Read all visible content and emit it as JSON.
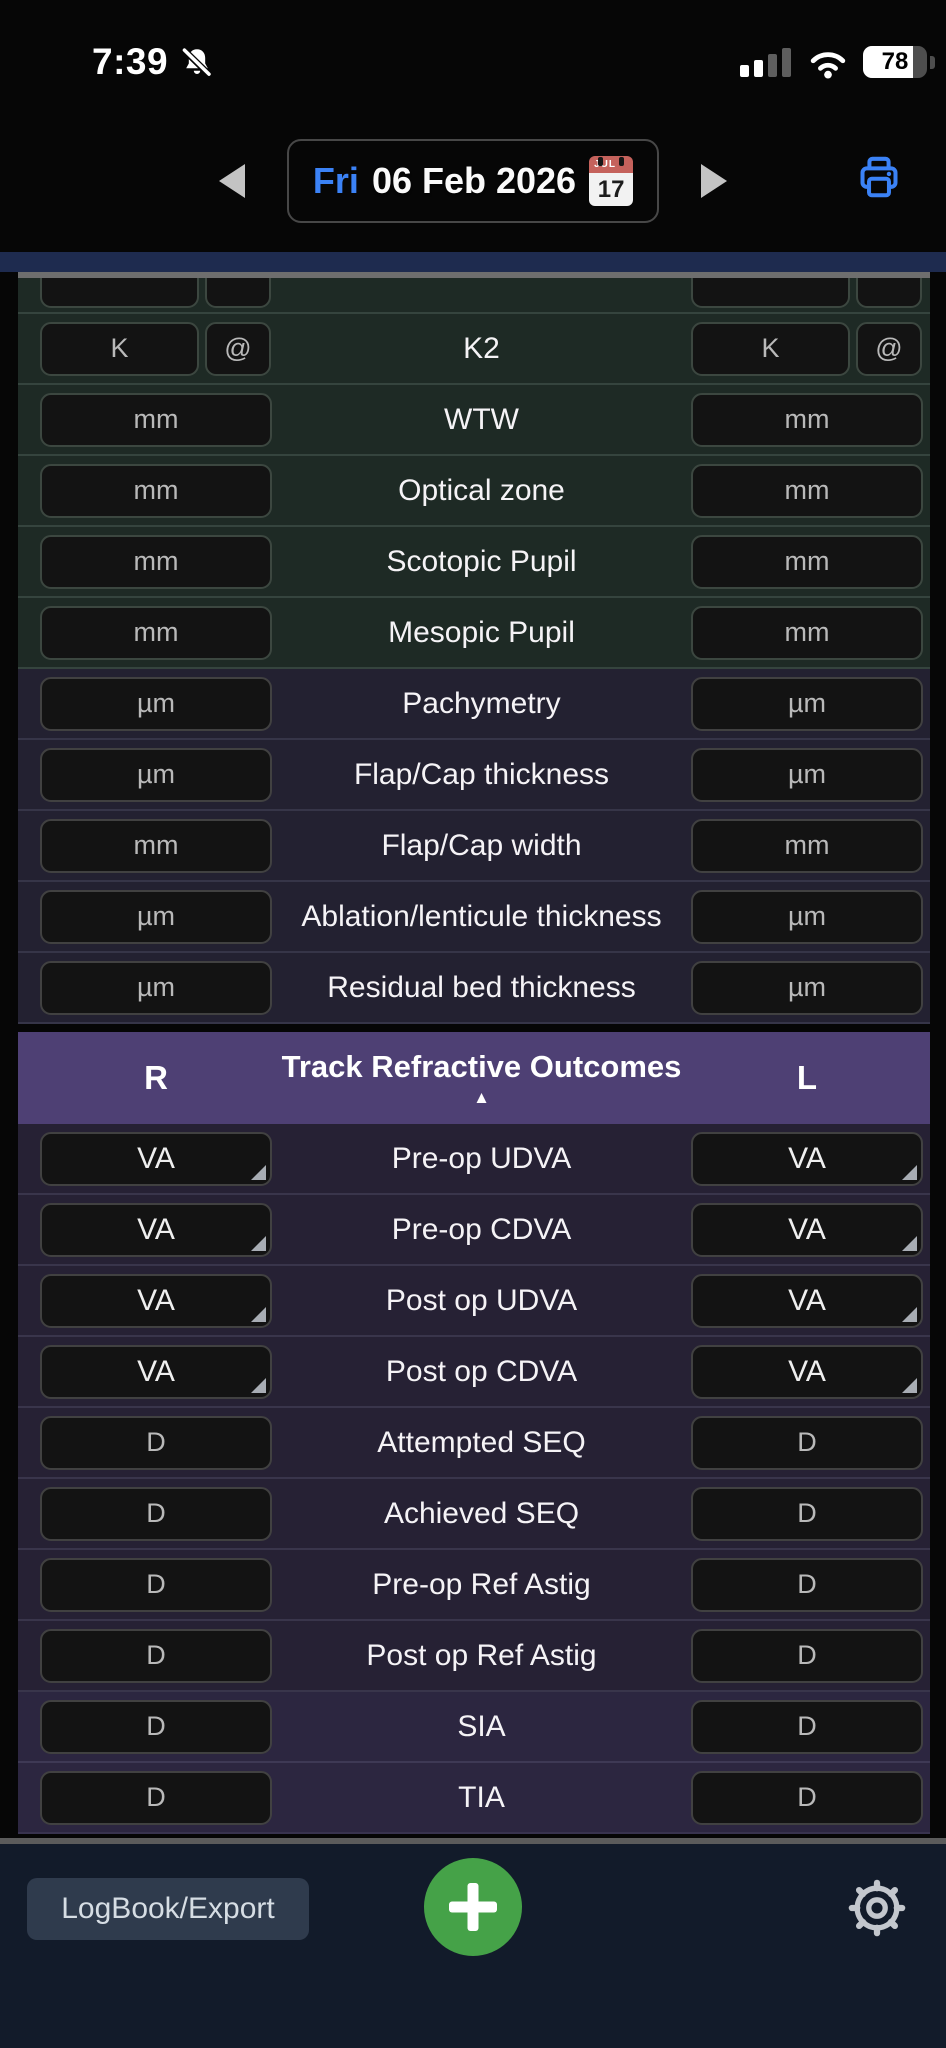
{
  "status_bar": {
    "time": "7:39",
    "battery_percent": "78",
    "icons": [
      "bell-slash-icon",
      "cellular-signal-icon",
      "wifi-icon",
      "battery-icon"
    ]
  },
  "date_nav": {
    "weekday": "Fri",
    "date": "06 Feb 2026",
    "calendar_month": "JUL",
    "calendar_day": "17"
  },
  "biometry": {
    "rows": [
      {
        "label": "",
        "units": [
          "",
          ""
        ],
        "partial": true,
        "section": "green"
      },
      {
        "label": "K2",
        "units": [
          "K",
          "@"
        ],
        "section": "green"
      },
      {
        "label": "WTW",
        "units": [
          "mm"
        ],
        "section": "green"
      },
      {
        "label": "Optical zone",
        "units": [
          "mm"
        ],
        "section": "green"
      },
      {
        "label": "Scotopic Pupil",
        "units": [
          "mm"
        ],
        "section": "green"
      },
      {
        "label": "Mesopic Pupil",
        "units": [
          "mm"
        ],
        "section": "green"
      },
      {
        "label": "Pachymetry",
        "units": [
          "µm"
        ],
        "section": "navy"
      },
      {
        "label": "Flap/Cap thickness",
        "units": [
          "µm"
        ],
        "section": "navy"
      },
      {
        "label": "Flap/Cap width",
        "units": [
          "mm"
        ],
        "section": "navy"
      },
      {
        "label": "Ablation/lenticule thickness",
        "units": [
          "µm"
        ],
        "section": "navy"
      },
      {
        "label": "Residual bed thickness",
        "units": [
          "µm"
        ],
        "section": "navy"
      }
    ]
  },
  "outcomes": {
    "header": {
      "left": "R",
      "title": "Track Refractive Outcomes",
      "sort_icon": "▲",
      "right": "L"
    },
    "rows": [
      {
        "label": "Pre-op UDVA",
        "units": [
          "VA"
        ],
        "picker": true
      },
      {
        "label": "Pre-op CDVA",
        "units": [
          "VA"
        ],
        "picker": true
      },
      {
        "label": "Post op UDVA",
        "units": [
          "VA"
        ],
        "picker": true
      },
      {
        "label": "Post op CDVA",
        "units": [
          "VA"
        ],
        "picker": true
      },
      {
        "label": "Attempted SEQ",
        "units": [
          "D"
        ]
      },
      {
        "label": "Achieved SEQ",
        "units": [
          "D"
        ]
      },
      {
        "label": "Pre-op Ref Astig",
        "units": [
          "D"
        ]
      },
      {
        "label": "Post op Ref Astig",
        "units": [
          "D"
        ]
      },
      {
        "label": "SIA",
        "units": [
          "D"
        ]
      },
      {
        "label": "TIA",
        "units": [
          "D"
        ]
      }
    ]
  },
  "bottom_bar": {
    "logbook_label": "LogBook/Export",
    "fab_icon": "plus-icon",
    "settings_icon": "gear-icon"
  },
  "colors": {
    "accent-blue": "#3b82f6",
    "header-purple": "#4e4074",
    "fab-green": "#45a248",
    "section-green": "#1e2a25",
    "section-navy": "#232131",
    "section-outcome": "#262134",
    "outcome-alt": "#2c2640"
  }
}
